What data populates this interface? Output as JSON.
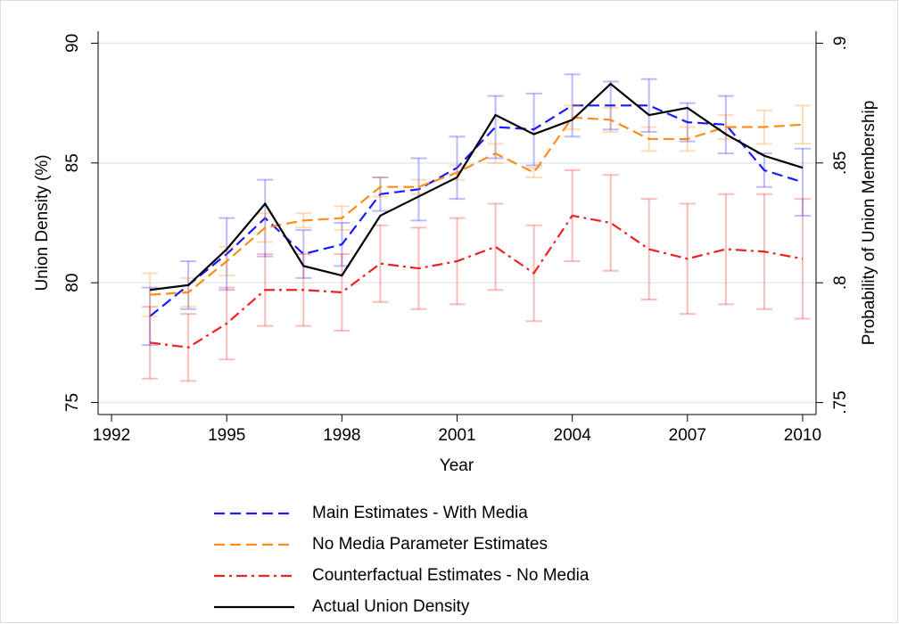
{
  "chart_data": {
    "type": "line",
    "x_label": "Year",
    "y_label": "Union Density (%)",
    "y2_label": "Probability of Union Membership",
    "x": [
      1993,
      1994,
      1995,
      1996,
      1997,
      1998,
      1999,
      2000,
      2001,
      2002,
      2003,
      2004,
      2005,
      2006,
      2007,
      2008,
      2009,
      2010
    ],
    "xlim": [
      1991.65,
      2010.35
    ],
    "xticks": [
      1992,
      1995,
      1998,
      2001,
      2004,
      2007,
      2010
    ],
    "ylim": [
      74.5,
      90.5
    ],
    "yticks": [
      75,
      80,
      85,
      90
    ],
    "y2lim": [
      0.745,
      0.905
    ],
    "y2ticks": [
      {
        "value": 0.75,
        "label": ".75"
      },
      {
        "value": 0.8,
        "label": ".8"
      },
      {
        "value": 0.85,
        "label": ".85"
      },
      {
        "value": 0.9,
        "label": ".9"
      }
    ],
    "grid": true,
    "legend": "bottom",
    "series": [
      {
        "name": "Main Estimates - With Media",
        "color": "#1a1aff",
        "style": "dashed",
        "values": [
          78.6,
          79.9,
          81.2,
          82.7,
          81.2,
          81.6,
          83.7,
          83.9,
          84.8,
          86.5,
          86.4,
          87.4,
          87.4,
          87.4,
          86.7,
          86.6,
          84.7,
          84.2
        ],
        "errors": [
          1.2,
          1.0,
          1.5,
          1.6,
          1.0,
          0.9,
          0.7,
          1.3,
          1.3,
          1.3,
          1.5,
          1.3,
          1.0,
          1.1,
          0.8,
          1.2,
          0.7,
          1.4
        ]
      },
      {
        "name": "No Media Parameter Estimates",
        "color": "#ff8c1a",
        "style": "dashed",
        "values": [
          79.5,
          79.6,
          80.9,
          82.3,
          82.6,
          82.7,
          84.0,
          84.0,
          84.6,
          85.4,
          84.6,
          86.9,
          86.8,
          86.0,
          86.0,
          86.5,
          86.5,
          86.6
        ],
        "errors": [
          0.9,
          0.6,
          0.6,
          0.6,
          0.3,
          0.5,
          0.4,
          0.3,
          0.3,
          0.4,
          0.2,
          0.5,
          0.5,
          0.5,
          0.5,
          0.5,
          0.7,
          0.8
        ]
      },
      {
        "name": "Counterfactual Estimates - No Media",
        "color": "#ee2222",
        "style": "dashdot",
        "values": [
          77.5,
          77.3,
          78.3,
          79.7,
          79.7,
          79.6,
          80.8,
          80.6,
          80.9,
          81.5,
          80.4,
          82.8,
          82.5,
          81.4,
          81.0,
          81.4,
          81.3,
          81.0
        ],
        "errors": [
          1.5,
          1.4,
          1.5,
          1.5,
          1.5,
          1.6,
          1.6,
          1.7,
          1.8,
          1.8,
          2.0,
          1.9,
          2.0,
          2.1,
          2.3,
          2.3,
          2.4,
          2.5
        ]
      },
      {
        "name": "Actual Union Density",
        "color": "#000000",
        "style": "solid",
        "values": [
          79.7,
          79.9,
          81.4,
          83.3,
          80.7,
          80.3,
          82.8,
          83.6,
          84.4,
          87.0,
          86.2,
          86.8,
          88.3,
          87.0,
          87.3,
          86.2,
          85.3,
          84.8
        ]
      }
    ]
  }
}
